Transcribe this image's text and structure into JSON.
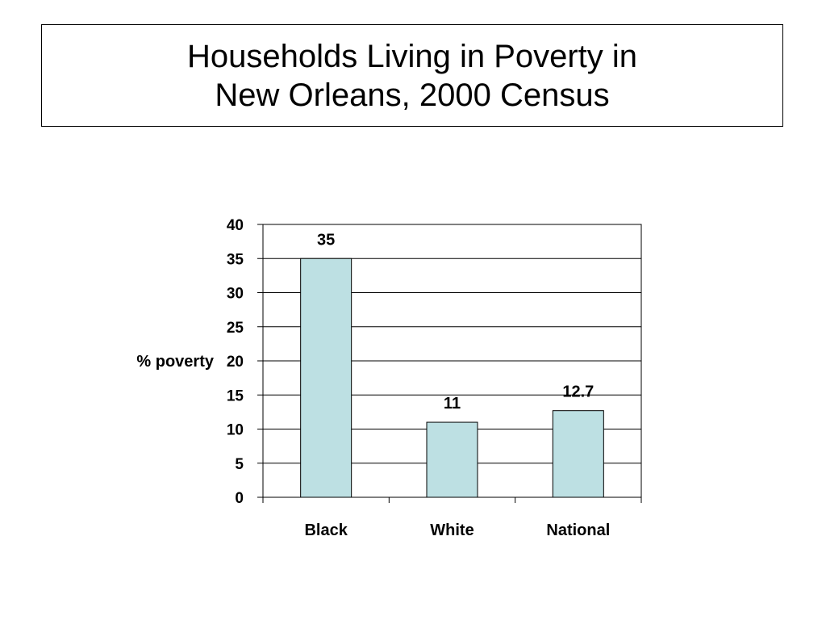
{
  "title": {
    "line1": "Households Living in Poverty in",
    "line2": "New Orleans, 2000 Census"
  },
  "chart_data": {
    "type": "bar",
    "categories": [
      "Black",
      "White",
      "National"
    ],
    "values": [
      35,
      11,
      12.7
    ],
    "value_labels": [
      "35",
      "11",
      "12.7"
    ],
    "ylabel": "% poverty",
    "xlabel": "",
    "ylim": [
      0,
      40
    ],
    "yticks": [
      0,
      5,
      10,
      15,
      20,
      25,
      30,
      35,
      40
    ],
    "grid": true,
    "bar_color": "#bde0e3",
    "legend": "none"
  }
}
